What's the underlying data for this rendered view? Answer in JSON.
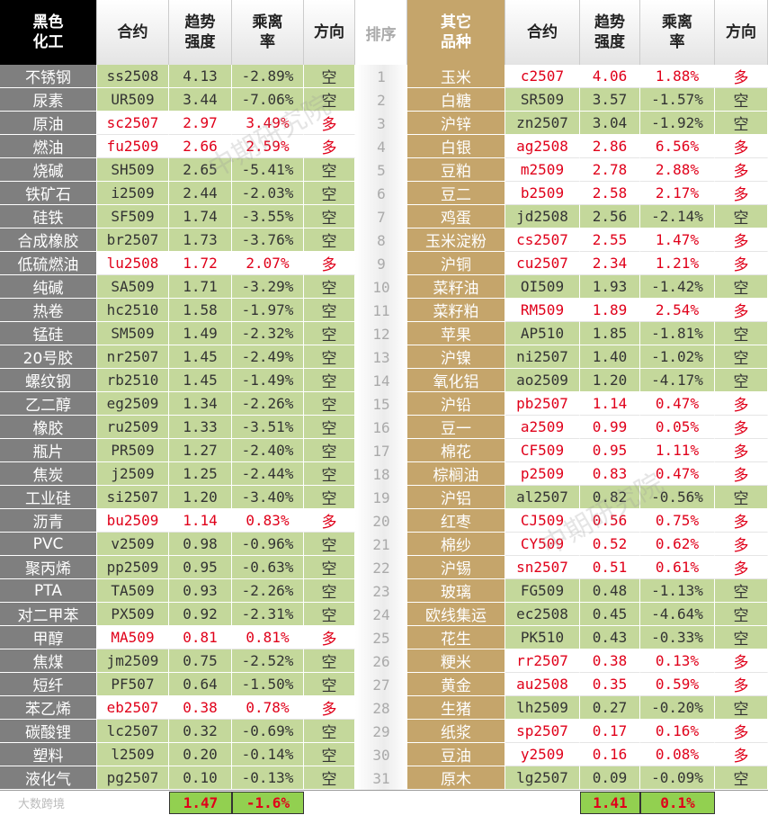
{
  "left": {
    "headers": [
      "黑色化工",
      "合约",
      "趋势强度",
      "乘离率",
      "方向"
    ],
    "rows": [
      [
        "不锈钢",
        "ss2508",
        "4.13",
        "-2.89%",
        "空"
      ],
      [
        "尿素",
        "UR509",
        "3.44",
        "-7.06%",
        "空"
      ],
      [
        "原油",
        "sc2507",
        "2.97",
        "3.49%",
        "多"
      ],
      [
        "燃油",
        "fu2509",
        "2.66",
        "2.59%",
        "多"
      ],
      [
        "烧碱",
        "SH509",
        "2.65",
        "-5.41%",
        "空"
      ],
      [
        "铁矿石",
        "i2509",
        "2.44",
        "-2.03%",
        "空"
      ],
      [
        "硅铁",
        "SF509",
        "1.74",
        "-3.55%",
        "空"
      ],
      [
        "合成橡胶",
        "br2507",
        "1.73",
        "-3.76%",
        "空"
      ],
      [
        "低硫燃油",
        "lu2508",
        "1.72",
        "2.07%",
        "多"
      ],
      [
        "纯碱",
        "SA509",
        "1.71",
        "-3.29%",
        "空"
      ],
      [
        "热卷",
        "hc2510",
        "1.58",
        "-1.97%",
        "空"
      ],
      [
        "锰硅",
        "SM509",
        "1.49",
        "-2.32%",
        "空"
      ],
      [
        "20号胶",
        "nr2507",
        "1.45",
        "-2.49%",
        "空"
      ],
      [
        "螺纹钢",
        "rb2510",
        "1.45",
        "-1.49%",
        "空"
      ],
      [
        "乙二醇",
        "eg2509",
        "1.34",
        "-2.26%",
        "空"
      ],
      [
        "橡胶",
        "ru2509",
        "1.33",
        "-3.51%",
        "空"
      ],
      [
        "瓶片",
        "PR509",
        "1.27",
        "-2.40%",
        "空"
      ],
      [
        "焦炭",
        "j2509",
        "1.25",
        "-2.44%",
        "空"
      ],
      [
        "工业硅",
        "si2507",
        "1.20",
        "-3.40%",
        "空"
      ],
      [
        "沥青",
        "bu2509",
        "1.14",
        "0.83%",
        "多"
      ],
      [
        "PVC",
        "v2509",
        "0.98",
        "-0.96%",
        "空"
      ],
      [
        "聚丙烯",
        "pp2509",
        "0.95",
        "-0.63%",
        "空"
      ],
      [
        "PTA",
        "TA509",
        "0.93",
        "-2.26%",
        "空"
      ],
      [
        "对二甲苯",
        "PX509",
        "0.92",
        "-2.31%",
        "空"
      ],
      [
        "甲醇",
        "MA509",
        "0.81",
        "0.81%",
        "多"
      ],
      [
        "焦煤",
        "jm2509",
        "0.75",
        "-2.52%",
        "空"
      ],
      [
        "短纤",
        "PF507",
        "0.64",
        "-1.50%",
        "空"
      ],
      [
        "苯乙烯",
        "eb2507",
        "0.38",
        "0.78%",
        "多"
      ],
      [
        "碳酸锂",
        "lc2507",
        "0.32",
        "-0.69%",
        "空"
      ],
      [
        "塑料",
        "l2509",
        "0.20",
        "-0.14%",
        "空"
      ],
      [
        "液化气",
        "pg2507",
        "0.10",
        "-0.13%",
        "空"
      ]
    ],
    "average": [
      "1.47",
      "-1.6%"
    ]
  },
  "rank": {
    "header": "排序",
    "values": [
      "1",
      "2",
      "3",
      "4",
      "5",
      "6",
      "7",
      "8",
      "9",
      "10",
      "11",
      "12",
      "13",
      "14",
      "15",
      "16",
      "17",
      "18",
      "19",
      "20",
      "21",
      "22",
      "23",
      "24",
      "25",
      "26",
      "27",
      "28",
      "29",
      "30",
      "31"
    ]
  },
  "right": {
    "headers": [
      "其它品种",
      "合约",
      "趋势强度",
      "乘离率",
      "方向"
    ],
    "rows": [
      [
        "玉米",
        "c2507",
        "4.06",
        "1.88%",
        "多"
      ],
      [
        "白糖",
        "SR509",
        "3.57",
        "-1.57%",
        "空"
      ],
      [
        "沪锌",
        "zn2507",
        "3.04",
        "-1.92%",
        "空"
      ],
      [
        "白银",
        "ag2508",
        "2.86",
        "6.56%",
        "多"
      ],
      [
        "豆粕",
        "m2509",
        "2.78",
        "2.88%",
        "多"
      ],
      [
        "豆二",
        "b2509",
        "2.58",
        "2.17%",
        "多"
      ],
      [
        "鸡蛋",
        "jd2508",
        "2.56",
        "-2.14%",
        "空"
      ],
      [
        "玉米淀粉",
        "cs2507",
        "2.55",
        "1.47%",
        "多"
      ],
      [
        "沪铜",
        "cu2507",
        "2.34",
        "1.21%",
        "多"
      ],
      [
        "菜籽油",
        "OI509",
        "1.93",
        "-1.42%",
        "空"
      ],
      [
        "菜籽粕",
        "RM509",
        "1.89",
        "2.54%",
        "多"
      ],
      [
        "苹果",
        "AP510",
        "1.85",
        "-1.81%",
        "空"
      ],
      [
        "沪镍",
        "ni2507",
        "1.40",
        "-1.02%",
        "空"
      ],
      [
        "氧化铝",
        "ao2509",
        "1.20",
        "-4.17%",
        "空"
      ],
      [
        "沪铅",
        "pb2507",
        "1.14",
        "0.47%",
        "多"
      ],
      [
        "豆一",
        "a2509",
        "0.99",
        "0.05%",
        "多"
      ],
      [
        "棉花",
        "CF509",
        "0.95",
        "1.11%",
        "多"
      ],
      [
        "棕榈油",
        "p2509",
        "0.83",
        "0.47%",
        "多"
      ],
      [
        "沪铝",
        "al2507",
        "0.82",
        "-0.56%",
        "空"
      ],
      [
        "红枣",
        "CJ509",
        "0.56",
        "0.75%",
        "多"
      ],
      [
        "棉纱",
        "CY509",
        "0.52",
        "0.62%",
        "多"
      ],
      [
        "沪锡",
        "sn2507",
        "0.51",
        "0.61%",
        "多"
      ],
      [
        "玻璃",
        "FG509",
        "0.48",
        "-1.13%",
        "空"
      ],
      [
        "欧线集运",
        "ec2508",
        "0.45",
        "-4.64%",
        "空"
      ],
      [
        "花生",
        "PK510",
        "0.43",
        "-0.33%",
        "空"
      ],
      [
        "粳米",
        "rr2507",
        "0.38",
        "0.13%",
        "多"
      ],
      [
        "黄金",
        "au2508",
        "0.35",
        "0.59%",
        "多"
      ],
      [
        "生猪",
        "lh2509",
        "0.27",
        "-0.20%",
        "空"
      ],
      [
        "纸浆",
        "sp2507",
        "0.17",
        "0.16%",
        "多"
      ],
      [
        "豆油",
        "y2509",
        "0.16",
        "0.08%",
        "多"
      ],
      [
        "原木",
        "lg2507",
        "0.09",
        "-0.09%",
        "空"
      ]
    ],
    "average": [
      "1.41",
      "0.1%"
    ]
  },
  "watermarks": [
    "中期研究院",
    "中期研究院"
  ],
  "logo": "大数跨境"
}
